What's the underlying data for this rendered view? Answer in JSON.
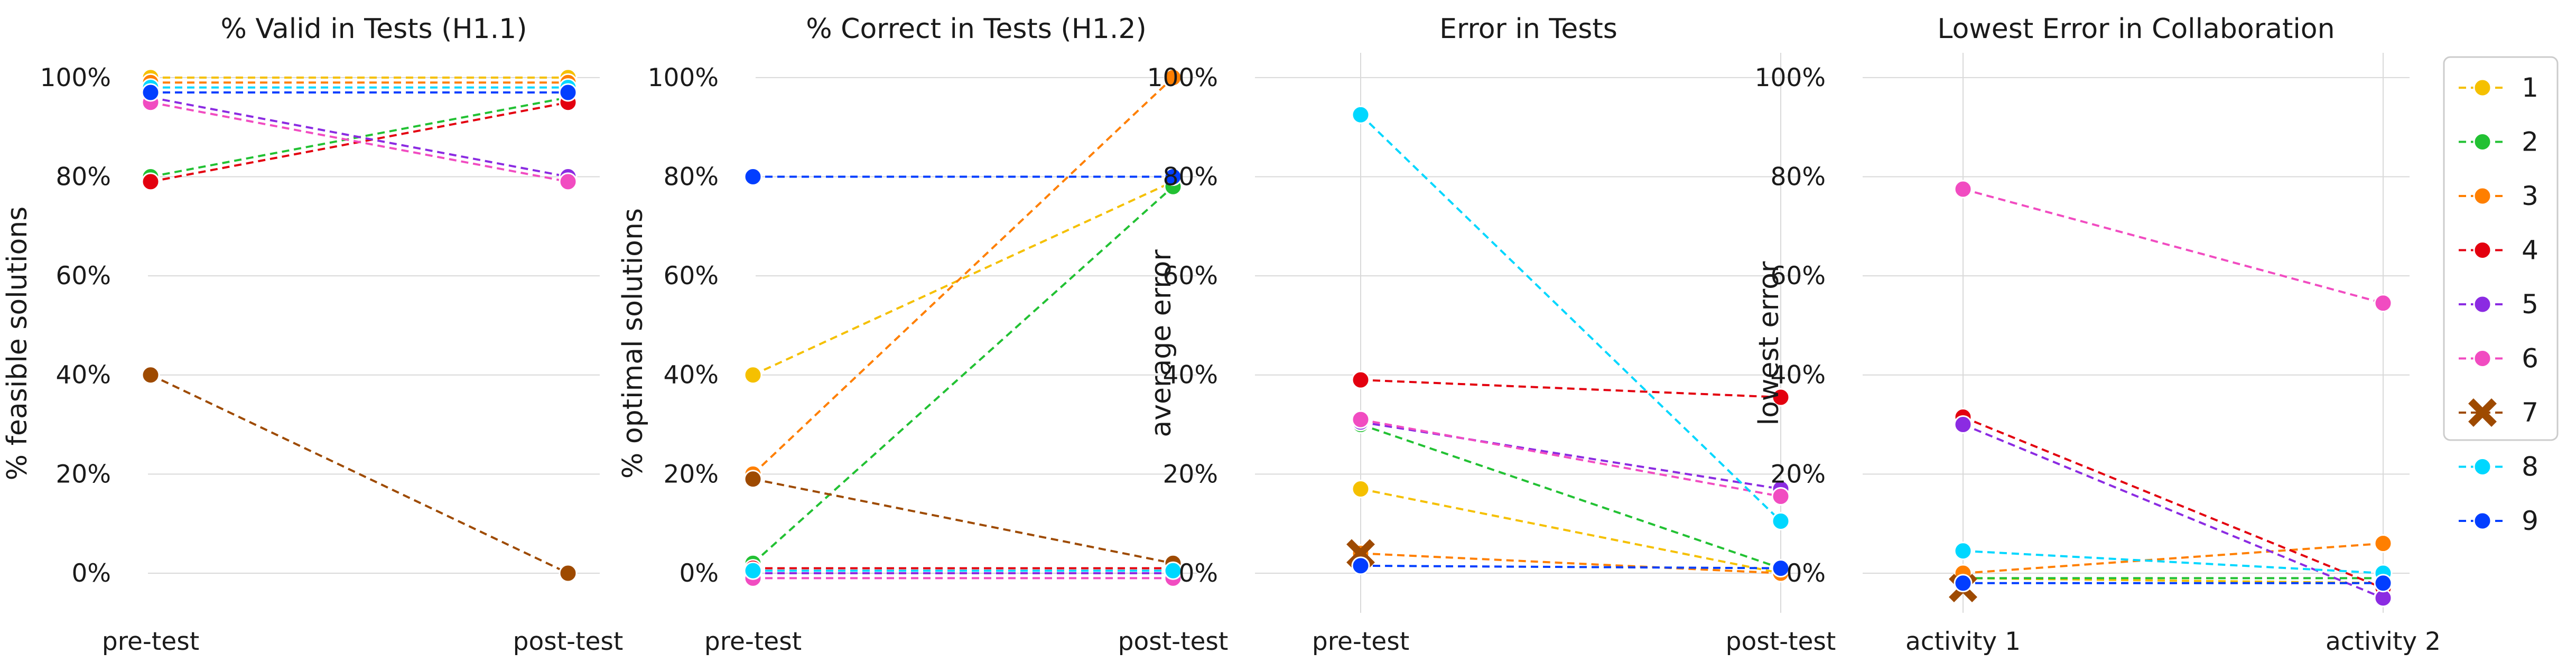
{
  "colors": {
    "1": "#f5c000",
    "2": "#22c133",
    "3": "#ff7f00",
    "4": "#e3000f",
    "5": "#8b2be2",
    "6": "#f14cc1",
    "7": "#9e4a00",
    "8": "#00d7ff",
    "9": "#023eff"
  },
  "legend": {
    "entries": [
      {
        "label": "1",
        "key": "1",
        "marker": "circle"
      },
      {
        "label": "2",
        "key": "2",
        "marker": "circle"
      },
      {
        "label": "3",
        "key": "3",
        "marker": "circle"
      },
      {
        "label": "4",
        "key": "4",
        "marker": "circle"
      },
      {
        "label": "5",
        "key": "5",
        "marker": "circle"
      },
      {
        "label": "6",
        "key": "6",
        "marker": "circle"
      },
      {
        "label": "7",
        "key": "7",
        "marker": "x"
      },
      {
        "label": "8",
        "key": "8",
        "marker": "circle"
      },
      {
        "label": "9",
        "key": "9",
        "marker": "circle"
      }
    ],
    "placement": "right"
  },
  "chart_data": [
    {
      "type": "line",
      "title": "% Valid in Tests (H1.1)",
      "xlabel": "",
      "ylabel": "% feasible solutions",
      "x": [
        "pre-test",
        "post-test"
      ],
      "ylim": [
        -0.08,
        1.05
      ],
      "yticks": [
        0,
        0.2,
        0.4,
        0.6,
        0.8,
        1.0
      ],
      "ytick_labels": [
        "0%",
        "20%",
        "40%",
        "60%",
        "80%",
        "100%"
      ],
      "vgrid": false,
      "series": [
        {
          "name": "1",
          "values": [
            1.0,
            1.0
          ]
        },
        {
          "name": "2",
          "values": [
            0.8,
            0.96
          ]
        },
        {
          "name": "3",
          "values": [
            0.99,
            0.99
          ]
        },
        {
          "name": "4",
          "values": [
            0.79,
            0.95
          ]
        },
        {
          "name": "5",
          "values": [
            0.96,
            0.8
          ]
        },
        {
          "name": "6",
          "values": [
            0.95,
            0.79
          ]
        },
        {
          "name": "7",
          "values": [
            0.4,
            0.0
          ]
        },
        {
          "name": "8",
          "values": [
            0.98,
            0.98
          ]
        },
        {
          "name": "9",
          "values": [
            0.97,
            0.97
          ]
        }
      ]
    },
    {
      "type": "line",
      "title": "% Correct in Tests (H1.2)",
      "xlabel": "",
      "ylabel": "% optimal solutions",
      "x": [
        "pre-test",
        "post-test"
      ],
      "ylim": [
        -0.08,
        1.05
      ],
      "yticks": [
        0,
        0.2,
        0.4,
        0.6,
        0.8,
        1.0
      ],
      "ytick_labels": [
        "0%",
        "20%",
        "40%",
        "60%",
        "80%",
        "100%"
      ],
      "vgrid": false,
      "series": [
        {
          "name": "1",
          "values": [
            0.4,
            0.79
          ]
        },
        {
          "name": "2",
          "values": [
            0.02,
            0.78
          ]
        },
        {
          "name": "3",
          "values": [
            0.2,
            1.0
          ]
        },
        {
          "name": "4",
          "values": [
            0.01,
            0.01
          ]
        },
        {
          "name": "5",
          "values": [
            0.0,
            0.0
          ]
        },
        {
          "name": "6",
          "values": [
            -0.01,
            -0.01
          ]
        },
        {
          "name": "7",
          "values": [
            0.19,
            0.02
          ]
        },
        {
          "name": "8",
          "values": [
            0.005,
            0.005
          ]
        },
        {
          "name": "9",
          "values": [
            0.8,
            0.8
          ]
        }
      ]
    },
    {
      "type": "line",
      "title": "Error in Tests",
      "xlabel": "",
      "ylabel": "average error",
      "x": [
        "pre-test",
        "post-test"
      ],
      "ylim": [
        -0.08,
        1.05
      ],
      "yticks": [
        0,
        0.2,
        0.4,
        0.6,
        0.8,
        1.0
      ],
      "ytick_labels": [
        "0%",
        "20%",
        "40%",
        "60%",
        "80%",
        "100%"
      ],
      "vgrid": true,
      "series": [
        {
          "name": "1",
          "values": [
            0.17,
            0.0
          ]
        },
        {
          "name": "2",
          "values": [
            0.3,
            0.01
          ]
        },
        {
          "name": "3",
          "values": [
            0.04,
            0.0
          ]
        },
        {
          "name": "4",
          "values": [
            0.39,
            0.355
          ]
        },
        {
          "name": "5",
          "values": [
            0.305,
            0.17
          ]
        },
        {
          "name": "6",
          "values": [
            0.31,
            0.155
          ]
        },
        {
          "name": "7",
          "values": [
            0.04,
            null
          ]
        },
        {
          "name": "8",
          "values": [
            0.925,
            0.105
          ]
        },
        {
          "name": "9",
          "values": [
            0.015,
            0.01
          ]
        }
      ]
    },
    {
      "type": "line",
      "title": "Lowest Error in Collaboration",
      "xlabel": "",
      "ylabel": "lowest error",
      "x": [
        "activity 1",
        "activity 2"
      ],
      "ylim": [
        -0.08,
        1.05
      ],
      "yticks": [
        0,
        0.2,
        0.4,
        0.6,
        0.8,
        1.0
      ],
      "ytick_labels": [
        "0%",
        "20%",
        "40%",
        "60%",
        "80%",
        "100%"
      ],
      "vgrid": true,
      "series": [
        {
          "name": "1",
          "values": [
            -0.01,
            -0.02
          ]
        },
        {
          "name": "2",
          "values": [
            -0.01,
            -0.01
          ]
        },
        {
          "name": "3",
          "values": [
            0.0,
            0.06
          ]
        },
        {
          "name": "4",
          "values": [
            0.315,
            -0.03
          ]
        },
        {
          "name": "5",
          "values": [
            0.3,
            -0.05
          ]
        },
        {
          "name": "6",
          "values": [
            0.775,
            0.545
          ]
        },
        {
          "name": "7",
          "values": [
            -0.03,
            null
          ]
        },
        {
          "name": "8",
          "values": [
            0.045,
            0.0
          ]
        },
        {
          "name": "9",
          "values": [
            -0.02,
            -0.02
          ]
        }
      ]
    }
  ]
}
